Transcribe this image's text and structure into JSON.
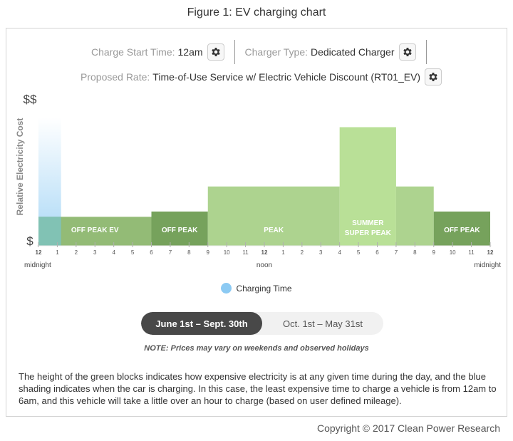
{
  "figure_title": "Figure 1: EV charging chart",
  "controls": {
    "charge_start_label": "Charge Start Time:",
    "charge_start_value": "12am",
    "charger_type_label": "Charger Type:",
    "charger_type_value": "Dedicated Charger",
    "rate_label": "Proposed Rate:",
    "rate_value": "Time-of-Use Service w/ Electric Vehicle Discount (RT01_EV)"
  },
  "chart_data": {
    "type": "bar",
    "ylabel": "Relative Electricity Cost",
    "y_top_label": "$$",
    "y_bottom_label": "$",
    "x_ticks": [
      "12",
      "1",
      "2",
      "3",
      "4",
      "5",
      "6",
      "7",
      "8",
      "9",
      "10",
      "11",
      "12",
      "1",
      "2",
      "3",
      "4",
      "5",
      "6",
      "7",
      "8",
      "9",
      "10",
      "11",
      "12"
    ],
    "x_sublabels": [
      {
        "hour": 0,
        "text": "midnight"
      },
      {
        "hour": 12,
        "text": "noon"
      },
      {
        "hour": 24,
        "text": "midnight"
      }
    ],
    "ylim": [
      0,
      1
    ],
    "blocks": [
      {
        "start": 0,
        "end": 6,
        "level": 0.22,
        "label": "OFF PEAK EV",
        "color": "#8ab56a"
      },
      {
        "start": 6,
        "end": 9,
        "level": 0.26,
        "label": "OFF PEAK",
        "color": "#6a9a4e"
      },
      {
        "start": 9,
        "end": 16,
        "level": 0.45,
        "label": "PEAK",
        "color": "#a6cf85"
      },
      {
        "start": 16,
        "end": 19,
        "level": 0.9,
        "label": "SUMMER SUPER PEAK",
        "label_lines": [
          "SUMMER",
          "SUPER PEAK"
        ],
        "color": "#b3dd8e"
      },
      {
        "start": 19,
        "end": 21,
        "level": 0.45,
        "label": "",
        "color": "#a6cf85"
      },
      {
        "start": 21,
        "end": 24,
        "level": 0.26,
        "label": "OFF PEAK",
        "color": "#6a9a4e"
      }
    ],
    "charging": {
      "start": 0,
      "end": 1.2,
      "label": "Charging Time",
      "color": "#8ccaf3"
    }
  },
  "seasons": {
    "active": "June 1st – Sept. 30th",
    "inactive": "Oct. 1st – May 31st"
  },
  "note": "NOTE: Prices may vary on weekends and observed holidays",
  "caption": "The height of the green blocks indicates how expensive electricity is at any given time during the day, and the blue shading indicates when the car is charging. In this case, the least expensive time to charge a vehicle is from 12am to 6am, and this vehicle will take a little over an hour to charge (based on user defined mileage).",
  "copyright": "Copyright © 2017 Clean Power Research"
}
